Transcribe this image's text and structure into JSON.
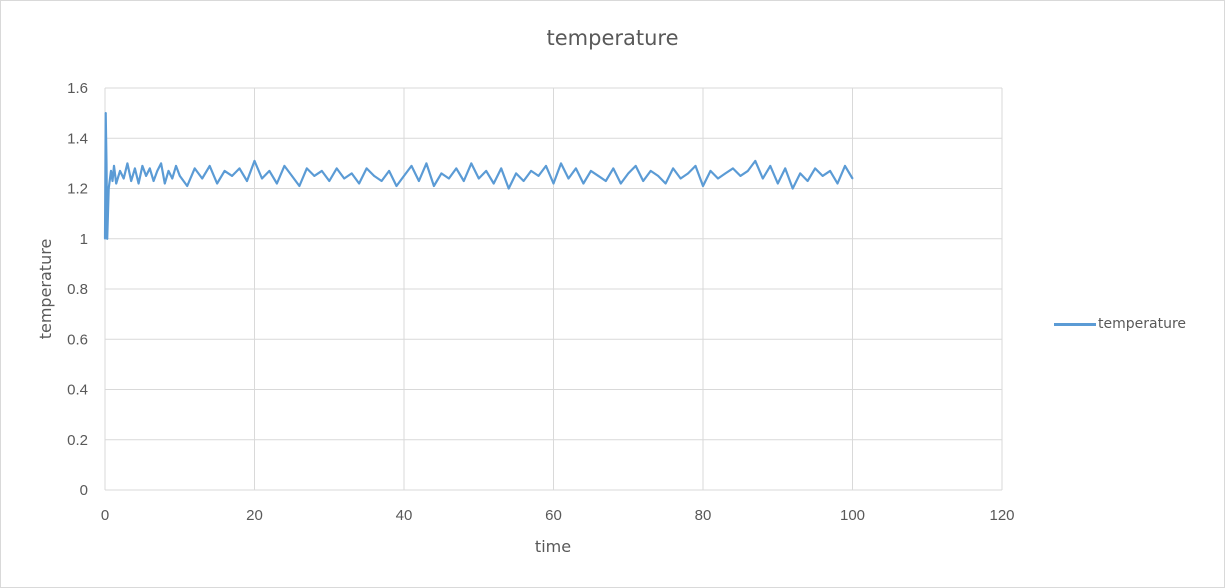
{
  "chart_data": {
    "type": "line",
    "title": "temperature",
    "xlabel": "time",
    "ylabel": "temperature",
    "xlim": [
      0,
      120
    ],
    "ylim": [
      0,
      1.6
    ],
    "xticks": [
      "0",
      "20",
      "40",
      "60",
      "80",
      "100",
      "120"
    ],
    "yticks": [
      "0",
      "0.2",
      "0.4",
      "0.6",
      "0.8",
      "1",
      "1.2",
      "1.4",
      "1.6"
    ],
    "grid": true,
    "legend_position": "right",
    "series": [
      {
        "name": "temperature",
        "color": "#5b9bd5",
        "x": [
          0,
          0.1,
          0.2,
          0.3,
          0.5,
          0.8,
          1,
          1.2,
          1.5,
          2,
          2.5,
          3,
          3.5,
          4,
          4.5,
          5,
          5.5,
          6,
          6.5,
          7,
          7.5,
          8,
          8.5,
          9,
          9.5,
          10,
          11,
          12,
          13,
          14,
          15,
          16,
          17,
          18,
          19,
          20,
          21,
          22,
          23,
          24,
          25,
          26,
          27,
          28,
          29,
          30,
          31,
          32,
          33,
          34,
          35,
          36,
          37,
          38,
          39,
          40,
          41,
          42,
          43,
          44,
          45,
          46,
          47,
          48,
          49,
          50,
          51,
          52,
          53,
          54,
          55,
          56,
          57,
          58,
          59,
          60,
          61,
          62,
          63,
          64,
          65,
          66,
          67,
          68,
          69,
          70,
          71,
          72,
          73,
          74,
          75,
          76,
          77,
          78,
          79,
          80,
          81,
          82,
          83,
          84,
          85,
          86,
          87,
          88,
          89,
          90,
          91,
          92,
          93,
          94,
          95,
          96,
          97,
          98,
          99,
          100
        ],
        "y": [
          1.0,
          1.5,
          1.3,
          1.0,
          1.2,
          1.27,
          1.23,
          1.29,
          1.22,
          1.27,
          1.24,
          1.3,
          1.23,
          1.28,
          1.22,
          1.29,
          1.25,
          1.28,
          1.23,
          1.27,
          1.3,
          1.22,
          1.27,
          1.24,
          1.29,
          1.25,
          1.21,
          1.28,
          1.24,
          1.29,
          1.22,
          1.27,
          1.25,
          1.28,
          1.23,
          1.31,
          1.24,
          1.27,
          1.22,
          1.29,
          1.25,
          1.21,
          1.28,
          1.25,
          1.27,
          1.23,
          1.28,
          1.24,
          1.26,
          1.22,
          1.28,
          1.25,
          1.23,
          1.27,
          1.21,
          1.25,
          1.29,
          1.23,
          1.3,
          1.21,
          1.26,
          1.24,
          1.28,
          1.23,
          1.3,
          1.24,
          1.27,
          1.22,
          1.28,
          1.2,
          1.26,
          1.23,
          1.27,
          1.25,
          1.29,
          1.22,
          1.3,
          1.24,
          1.28,
          1.22,
          1.27,
          1.25,
          1.23,
          1.28,
          1.22,
          1.26,
          1.29,
          1.23,
          1.27,
          1.25,
          1.22,
          1.28,
          1.24,
          1.26,
          1.29,
          1.21,
          1.27,
          1.24,
          1.26,
          1.28,
          1.25,
          1.27,
          1.31,
          1.24,
          1.29,
          1.22,
          1.28,
          1.2,
          1.26,
          1.23,
          1.28,
          1.25,
          1.27,
          1.22,
          1.29,
          1.24
        ]
      }
    ]
  }
}
